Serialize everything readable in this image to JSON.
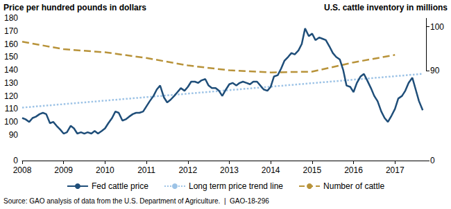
{
  "chart_data": {
    "type": "line",
    "ylabel": "Price per hundred pounds in dollars",
    "y2label": "U.S. cattle inventory in millions",
    "source": "Source: GAO analysis of data from the U.S. Department of Agriculture.  |  GAO-18-296",
    "xlim": [
      2008,
      2017.75
    ],
    "xticks": [
      2008,
      2009,
      2010,
      2011,
      2012,
      2013,
      2014,
      2015,
      2016,
      2017
    ],
    "ylim": [
      0,
      180
    ],
    "yticks": [
      0,
      90,
      100,
      110,
      120,
      130,
      140,
      150,
      160,
      170,
      180
    ],
    "y2lim": [
      0,
      102
    ],
    "y2ticks": [
      0,
      90,
      100
    ],
    "grid": false,
    "legend": "bottom",
    "series": [
      {
        "name": "Fed cattle price",
        "color": "#1f4e79",
        "line_style": "solid",
        "x": [
          2008,
          2008.08,
          2008.17,
          2008.25,
          2008.33,
          2008.42,
          2008.5,
          2008.58,
          2008.67,
          2008.75,
          2008.83,
          2008.92,
          2009,
          2009.08,
          2009.17,
          2009.25,
          2009.33,
          2009.42,
          2009.5,
          2009.58,
          2009.67,
          2009.75,
          2009.83,
          2009.92,
          2010,
          2010.08,
          2010.17,
          2010.25,
          2010.33,
          2010.42,
          2010.5,
          2010.58,
          2010.67,
          2010.75,
          2010.83,
          2010.92,
          2011,
          2011.08,
          2011.17,
          2011.25,
          2011.33,
          2011.42,
          2011.5,
          2011.58,
          2011.67,
          2011.75,
          2011.83,
          2011.92,
          2012,
          2012.08,
          2012.17,
          2012.25,
          2012.33,
          2012.42,
          2012.5,
          2012.58,
          2012.67,
          2012.75,
          2012.83,
          2012.92,
          2013,
          2013.08,
          2013.17,
          2013.25,
          2013.33,
          2013.42,
          2013.5,
          2013.58,
          2013.67,
          2013.75,
          2013.83,
          2013.92,
          2014,
          2014.08,
          2014.17,
          2014.25,
          2014.33,
          2014.42,
          2014.5,
          2014.58,
          2014.67,
          2014.75,
          2014.83,
          2014.92,
          2015,
          2015.08,
          2015.17,
          2015.25,
          2015.33,
          2015.42,
          2015.5,
          2015.58,
          2015.67,
          2015.75,
          2015.83,
          2015.92,
          2016,
          2016.08,
          2016.17,
          2016.25,
          2016.33,
          2016.42,
          2016.5,
          2016.58,
          2016.67,
          2016.75,
          2016.83,
          2016.92,
          2017,
          2017.08,
          2017.17,
          2017.25,
          2017.33,
          2017.42,
          2017.5,
          2017.58,
          2017.67
        ],
        "values": [
          103,
          102,
          100,
          103,
          104,
          106,
          107,
          106,
          99,
          100,
          97,
          94,
          91,
          92,
          97,
          95,
          91,
          92,
          91,
          92,
          91,
          93,
          91,
          93,
          95,
          99,
          103,
          108,
          107,
          101,
          102,
          104,
          106,
          107,
          107,
          108,
          112,
          116,
          120,
          125,
          128,
          119,
          115,
          117,
          120,
          123,
          126,
          124,
          127,
          131,
          131,
          130,
          132,
          133,
          128,
          126,
          126,
          124,
          120,
          125,
          129,
          130,
          128,
          130,
          131,
          130,
          129,
          131,
          131,
          128,
          125,
          124,
          127,
          135,
          136,
          141,
          147,
          150,
          153,
          152,
          155,
          160,
          172,
          166,
          168,
          163,
          165,
          164,
          163,
          158,
          153,
          150,
          148,
          140,
          128,
          127,
          123,
          130,
          135,
          137,
          132,
          126,
          120,
          116,
          108,
          103,
          100,
          105,
          110,
          118,
          120,
          124,
          130,
          134,
          125,
          116,
          109
        ]
      },
      {
        "name": "Long term price trend line",
        "color": "#9dc3e6",
        "line_style": "dotted",
        "x": [
          2008,
          2017.67
        ],
        "values": [
          111,
          137
        ]
      },
      {
        "name": "Number of cattle",
        "color": "#b8933a",
        "line_style": "dashed",
        "axis": "y2",
        "x": [
          2008,
          2009,
          2010,
          2011,
          2012,
          2013,
          2014,
          2015,
          2016,
          2017
        ],
        "values": [
          96.6,
          94.9,
          94.2,
          92.9,
          91.2,
          90.1,
          88.3,
          89.1,
          91.9,
          93.6
        ]
      }
    ]
  }
}
